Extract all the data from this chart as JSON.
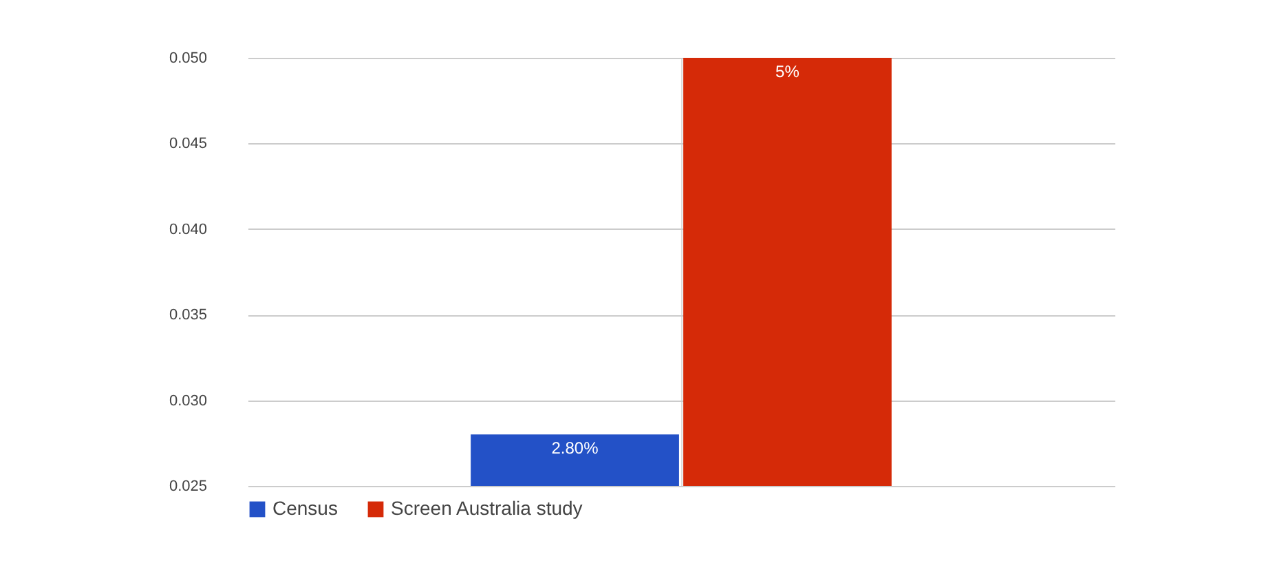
{
  "chart_data": {
    "type": "bar",
    "categories": [
      null
    ],
    "series": [
      {
        "name": "Census",
        "color": "#2351c7",
        "values": [
          0.028
        ],
        "value_labels": [
          "2.80%"
        ]
      },
      {
        "name": "Screen Australia study",
        "color": "#d52a08",
        "values": [
          0.05
        ],
        "value_labels": [
          "5%"
        ]
      }
    ],
    "ylim": [
      0.025,
      0.05
    ],
    "yticks": [
      {
        "value": 0.025,
        "label": "0.025"
      },
      {
        "value": 0.03,
        "label": "0.030"
      },
      {
        "value": 0.035,
        "label": "0.035"
      },
      {
        "value": 0.04,
        "label": "0.040"
      },
      {
        "value": 0.045,
        "label": "0.045"
      },
      {
        "value": 0.05,
        "label": "0.050"
      }
    ],
    "grid": true,
    "legend": "bottom"
  }
}
